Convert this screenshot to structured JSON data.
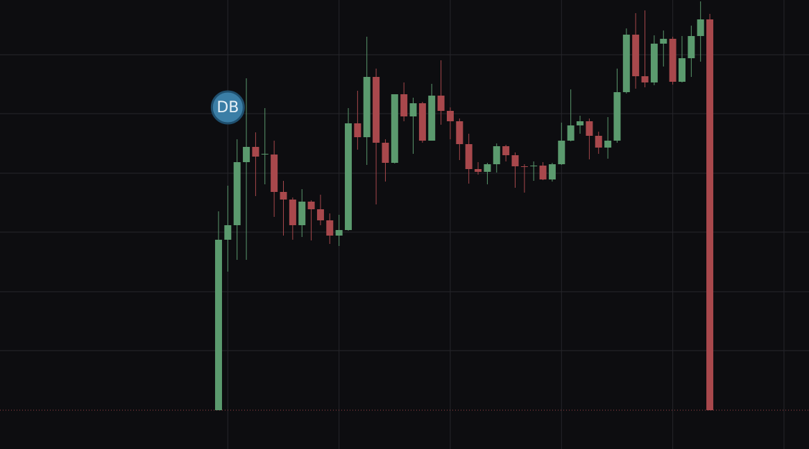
{
  "chart_data": {
    "type": "candlestick",
    "annotation": "DB",
    "categories": [
      null,
      null,
      null,
      null,
      null,
      null,
      null,
      null,
      null,
      null,
      null,
      null,
      null,
      null,
      null,
      null,
      null,
      null,
      null,
      null,
      null,
      null,
      null,
      null,
      null,
      null,
      null,
      null,
      null,
      null,
      null,
      null,
      null,
      null,
      null,
      null,
      null,
      null,
      null,
      null,
      null,
      null,
      null,
      null,
      null,
      null,
      null,
      null,
      null,
      null,
      null,
      null,
      null,
      null
    ],
    "open": [
      0,
      246,
      267,
      358,
      380,
      370,
      369,
      315,
      304,
      267,
      301,
      290,
      274,
      252,
      260,
      414,
      394,
      481,
      386,
      357,
      456,
      424,
      443,
      389,
      454,
      432,
      417,
      384,
      348,
      344,
      355,
      381,
      368,
      352,
      353,
      353,
      333,
      355,
      389,
      411,
      417,
      396,
      379,
      389,
      459,
      542,
      482,
      473,
      529,
      536,
      474,
      508,
      540,
      564
    ],
    "high": [
      287,
      324,
      391,
      479,
      401,
      436,
      389,
      331,
      307,
      319,
      303,
      311,
      284,
      282,
      436,
      461,
      539,
      493,
      391,
      456,
      473,
      451,
      445,
      471,
      505,
      437,
      421,
      399,
      358,
      357,
      385,
      383,
      372,
      355,
      359,
      358,
      357,
      415,
      463,
      425,
      421,
      402,
      423,
      493,
      551,
      573,
      577,
      541,
      548,
      539,
      540,
      555,
      590,
      572
    ],
    "low": [
      0,
      200,
      217,
      217,
      309,
      326,
      279,
      252,
      246,
      250,
      245,
      267,
      240,
      237,
      259,
      376,
      354,
      297,
      330,
      356,
      417,
      370,
      386,
      389,
      412,
      391,
      361,
      327,
      340,
      326,
      343,
      359,
      321,
      314,
      331,
      332,
      330,
      354,
      388,
      399,
      362,
      370,
      363,
      386,
      457,
      464,
      466,
      469,
      496,
      470,
      473,
      481,
      503,
      0
    ],
    "close": [
      246,
      267,
      358,
      380,
      366,
      370,
      315,
      304,
      267,
      301,
      290,
      274,
      252,
      260,
      414,
      394,
      481,
      386,
      357,
      456,
      424,
      443,
      389,
      454,
      432,
      417,
      384,
      348,
      344,
      355,
      381,
      368,
      352,
      351,
      353,
      333,
      355,
      389,
      411,
      417,
      396,
      379,
      389,
      459,
      542,
      482,
      473,
      529,
      536,
      474,
      508,
      540,
      564,
      0
    ],
    "up_color": "#5b9a6e",
    "down_color": "#a8484c",
    "ylim": [
      -56,
      592
    ],
    "yticks": [
      86,
      171,
      257,
      342,
      428,
      513
    ],
    "grid": true,
    "price_line": 0,
    "price_line_color": "#a8484c"
  }
}
